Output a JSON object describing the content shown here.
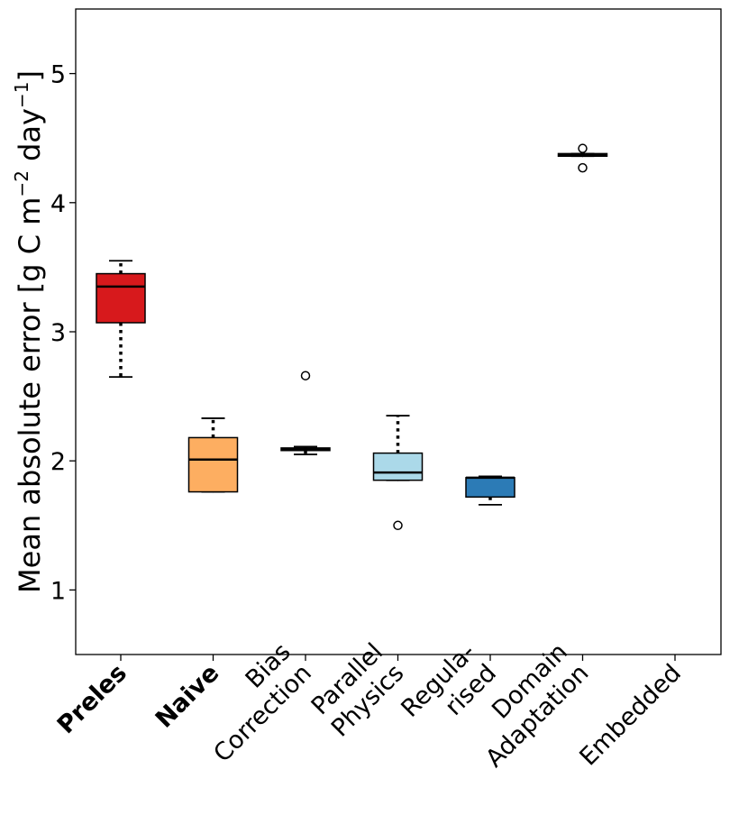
{
  "chart_data": {
    "type": "boxplot",
    "title": "",
    "xlabel": "",
    "ylabel": {
      "main": "Mean absolute error [g C m",
      "exp1": "−2",
      "mid": " day",
      "exp2": "−1",
      "end": "]"
    },
    "ylim": [
      0.5,
      5.5
    ],
    "yticks": [
      1,
      2,
      3,
      4,
      5
    ],
    "grid": false,
    "categories": [
      {
        "lines": [
          "Preles"
        ],
        "bold": true
      },
      {
        "lines": [
          "Naive"
        ],
        "bold": true
      },
      {
        "lines": [
          "Bias",
          "Correction"
        ],
        "bold": false
      },
      {
        "lines": [
          "Parallel",
          "Physics"
        ],
        "bold": false
      },
      {
        "lines": [
          "Regula-",
          "rised"
        ],
        "bold": false
      },
      {
        "lines": [
          "Domain",
          "Adaptation"
        ],
        "bold": false
      },
      {
        "lines": [
          "Embedded"
        ],
        "bold": false
      }
    ],
    "boxes": [
      {
        "name": "Preles",
        "color": "#d7191c",
        "whislo": 2.65,
        "q1": 3.07,
        "med": 3.35,
        "q3": 3.45,
        "whishi": 3.55,
        "fliers": []
      },
      {
        "name": "Naive",
        "color": "#fdae61",
        "whislo": 1.76,
        "q1": 1.76,
        "med": 2.01,
        "q3": 2.18,
        "whishi": 2.33,
        "fliers": []
      },
      {
        "name": "Bias Correction",
        "color": "#ffffbf",
        "whislo": 2.05,
        "q1": 2.08,
        "med": 2.09,
        "q3": 2.1,
        "whishi": 2.11,
        "fliers": [
          2.66
        ]
      },
      {
        "name": "Parallel Physics",
        "color": "#abd9e9",
        "whislo": 1.85,
        "q1": 1.85,
        "med": 1.91,
        "q3": 2.06,
        "whishi": 2.35,
        "fliers": [
          1.5
        ]
      },
      {
        "name": "Regularised",
        "color": "#2c7bb6",
        "whislo": 1.66,
        "q1": 1.72,
        "med": 1.87,
        "q3": 1.87,
        "whishi": 1.88,
        "fliers": []
      },
      {
        "name": "Domain Adaptation",
        "color": "#e6e6e6",
        "whislo": 4.36,
        "q1": 4.36,
        "med": 4.37,
        "q3": 4.38,
        "whishi": 4.38,
        "fliers": [
          4.42,
          4.27
        ]
      },
      {
        "name": "Embedded",
        "color": "#ffffff",
        "empty": true
      }
    ]
  }
}
